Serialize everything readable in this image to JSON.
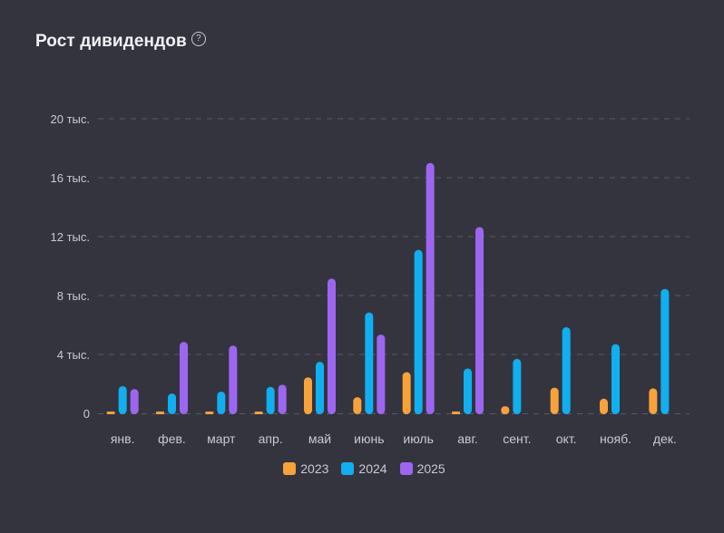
{
  "header": {
    "title": "Рост дивидендов",
    "help_icon": "question-circle-icon"
  },
  "colors": {
    "background": "#34343f",
    "grid": "#5a5a66",
    "text": "#c9c9d2",
    "series_2023": "#f8a23a",
    "series_2024": "#10aff0",
    "series_2025": "#9d66f0"
  },
  "chart_data": {
    "type": "bar",
    "title": "Рост дивидендов",
    "xlabel": "",
    "ylabel": "",
    "ylim": [
      0,
      20000
    ],
    "yticks": [
      0,
      4000,
      8000,
      12000,
      16000,
      20000
    ],
    "ytick_labels": [
      "0",
      "4 тыс.",
      "8 тыс.",
      "12 тыс.",
      "16 тыс.",
      "20 тыс."
    ],
    "grid": true,
    "legend_position": "bottom-center",
    "categories": [
      "янв.",
      "фев.",
      "март",
      "апр.",
      "май",
      "июнь",
      "июль",
      "авг.",
      "сент.",
      "окт.",
      "нояб.",
      "дек."
    ],
    "series": [
      {
        "name": "2023",
        "color": "#f8a23a",
        "values": [
          100,
          60,
          100,
          20,
          2450,
          1100,
          2800,
          100,
          480,
          1750,
          1000,
          1700
        ]
      },
      {
        "name": "2024",
        "color": "#10aff0",
        "values": [
          1850,
          1350,
          1480,
          1800,
          3500,
          6850,
          11100,
          3050,
          3700,
          5850,
          4700,
          8450
        ]
      },
      {
        "name": "2025",
        "color": "#9d66f0",
        "values": [
          1650,
          4850,
          4600,
          1950,
          9150,
          5350,
          17000,
          12650,
          0,
          0,
          0,
          0
        ]
      }
    ]
  }
}
